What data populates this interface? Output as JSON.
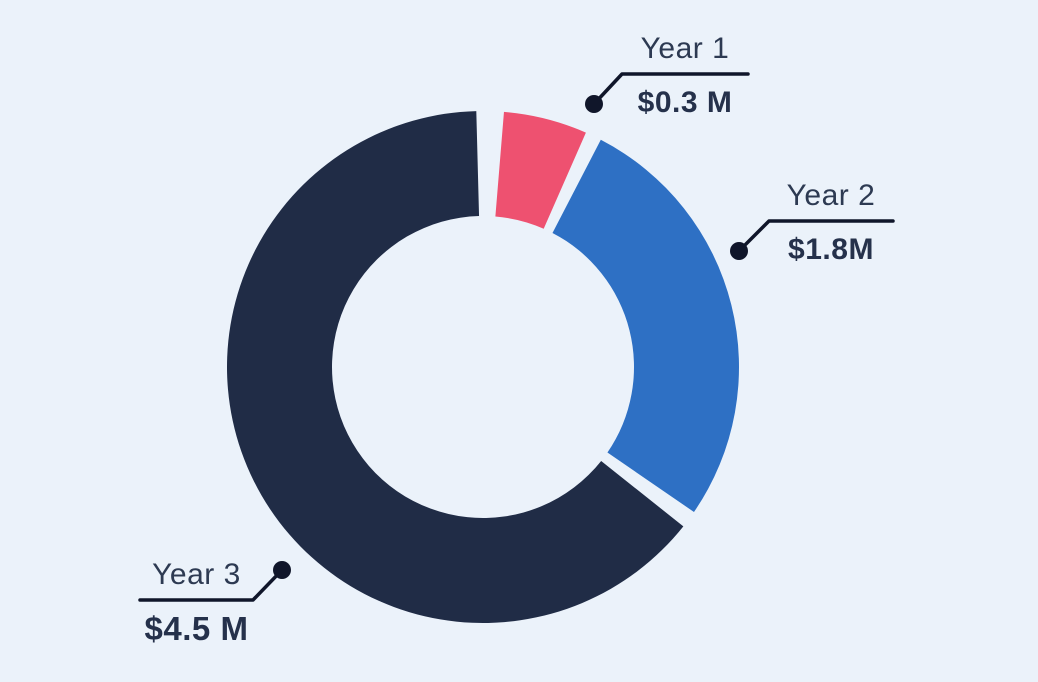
{
  "background_color": "#ebf2fa",
  "chart_data": {
    "type": "pie",
    "subtype": "donut",
    "title": "",
    "categories": [
      "Year 1",
      "Year 2",
      "Year 3"
    ],
    "values": [
      0.3,
      1.8,
      4.5
    ],
    "segments": [
      {
        "label": "Year 1",
        "value": 0.3,
        "value_label": "$0.3 M",
        "color": "#ee5170"
      },
      {
        "label": "Year 2",
        "value": 1.8,
        "value_label": "$1.8M",
        "color": "#2e70c4"
      },
      {
        "label": "Year 3",
        "value": 4.5,
        "value_label": "$4.5 M",
        "color": "#202c46"
      }
    ],
    "layout": {
      "center": [
        483,
        367
      ],
      "outer_radius": 256,
      "inner_radius": 151,
      "display_angles_deg": [
        [
          4.7,
          23.7
        ],
        [
          27.4,
          124.5
        ],
        [
          128.5,
          358.5
        ]
      ],
      "callouts": [
        {
          "dot": [
            594,
            104
          ],
          "elbow": [
            622,
            74
          ],
          "line_end": [
            748,
            74
          ],
          "value_font_px": 30
        },
        {
          "dot": [
            739,
            251
          ],
          "elbow": [
            769,
            221
          ],
          "line_end": [
            893,
            221
          ],
          "value_font_px": 30
        },
        {
          "dot": [
            282,
            570
          ],
          "elbow": [
            253,
            600
          ],
          "line_end": [
            140,
            600
          ],
          "value_font_px": 33
        }
      ],
      "line_color": "#10162a",
      "line_width": 3.5,
      "dot_radius": 9,
      "name_color": "#2d3a52",
      "value_color": "#25314b",
      "legend_position": "callouts",
      "grid": false
    }
  }
}
